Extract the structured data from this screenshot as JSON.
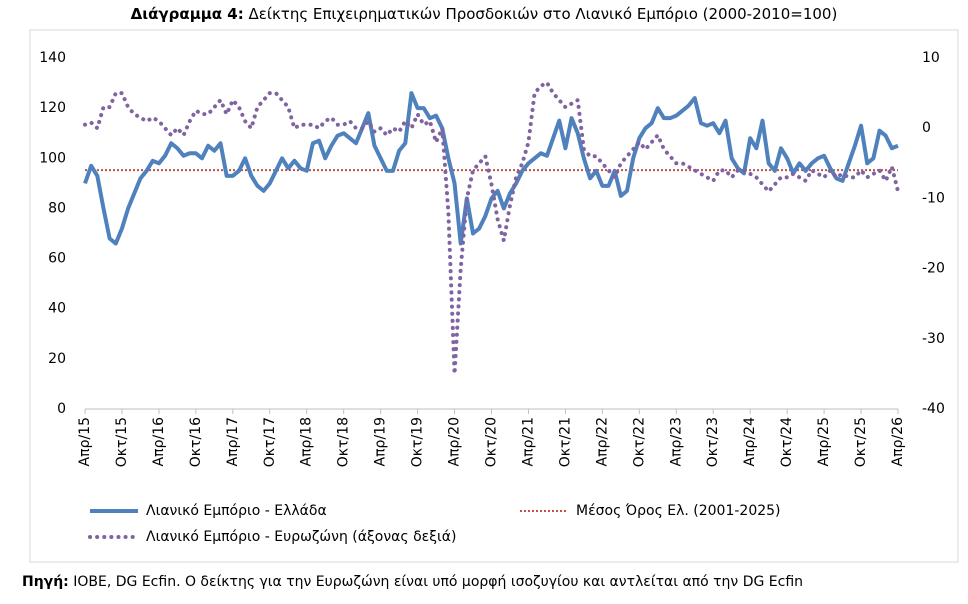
{
  "chart_data": {
    "type": "line",
    "title_prefix": "Διάγραμμα 4:",
    "title": "Δείκτης Επιχειρηματικών Προσδοκιών στο Λιανικό Εμπόριο (2000-2010=100)",
    "source_prefix": "Πηγή:",
    "source": "ΙΟΒΕ, DG Ecfin. Ο δείκτης για την Ευρωζώνη είναι υπό μορφή ισοζυγίου και αντλείται από την DG Ecfin",
    "categories": [
      "Απρ/15",
      null,
      null,
      null,
      null,
      null,
      "Οκτ/15",
      null,
      null,
      null,
      null,
      null,
      "Απρ/16",
      null,
      null,
      null,
      null,
      null,
      "Οκτ/16",
      null,
      null,
      null,
      null,
      null,
      "Απρ/17",
      null,
      null,
      null,
      null,
      null,
      "Οκτ/17",
      null,
      null,
      null,
      null,
      null,
      "Απρ/18",
      null,
      null,
      null,
      null,
      null,
      "Οκτ/18",
      null,
      null,
      null,
      null,
      null,
      "Απρ/19",
      null,
      null,
      null,
      null,
      null,
      "Οκτ/19",
      null,
      null,
      null,
      null,
      null,
      "Απρ/20",
      null,
      null,
      null,
      null,
      null,
      "Οκτ/20",
      null,
      null,
      null,
      null,
      null,
      "Απρ/21",
      null,
      null,
      null,
      null,
      null,
      "Οκτ/21",
      null,
      null,
      null,
      null,
      null,
      "Απρ/22",
      null,
      null,
      null,
      null,
      null,
      "Οκτ/22",
      null,
      null,
      null,
      null,
      null,
      "Απρ/23",
      null,
      null,
      null,
      null,
      null,
      "Οκτ/23",
      null,
      null,
      null,
      null,
      null,
      "Απρ/24",
      null,
      null,
      null,
      null,
      null,
      "Οκτ/24",
      null,
      null,
      null,
      null,
      null,
      "Απρ/25",
      null,
      null,
      null,
      null,
      null,
      "Οκτ/25",
      null,
      null,
      null,
      null,
      null,
      "Απρ/26"
    ],
    "series": [
      {
        "name": "Λιανικό Εμπόριο  - Ελλάδα",
        "color": "#4f81bd",
        "style": "solid",
        "values": [
          90,
          97,
          93,
          80,
          68,
          66,
          72,
          80,
          86,
          92,
          95,
          99,
          98,
          101,
          106,
          104,
          101,
          102,
          102,
          100,
          105,
          103,
          106,
          93,
          93,
          95,
          100,
          93,
          89,
          87,
          90,
          95,
          100,
          96,
          99,
          96,
          95,
          106,
          107,
          100,
          105,
          109,
          110,
          108,
          106,
          112,
          118,
          105,
          100,
          95,
          95,
          103,
          106,
          126,
          120,
          120,
          116,
          117,
          112,
          100,
          90,
          66,
          84,
          70,
          72,
          77,
          84,
          87,
          80,
          86,
          90,
          95,
          98,
          100,
          102,
          101,
          108,
          115,
          104,
          116,
          110,
          100,
          92,
          95,
          89,
          89,
          95,
          85,
          87,
          100,
          108,
          112,
          114,
          120,
          116,
          116,
          117,
          119,
          121,
          124,
          114,
          113,
          114,
          110,
          115,
          100,
          96,
          94,
          108,
          104,
          115,
          98,
          95,
          104,
          100,
          94,
          98,
          95,
          98,
          100,
          101,
          96,
          92,
          91,
          98,
          105,
          113,
          98,
          100,
          111,
          109,
          104,
          105
        ]
      },
      {
        "name": "Λιανικό Εμπόριο - Ευρωζώνη (άξονας δεξιά)",
        "color": "#8064a2",
        "style": "dotted",
        "axis": "y2",
        "values": [
          0.5,
          0.8,
          0,
          3,
          3,
          5,
          5,
          3,
          2,
          1.5,
          1,
          1.5,
          1,
          0,
          -1,
          0,
          -1,
          1,
          2.5,
          2,
          2,
          3,
          4,
          2,
          4,
          3,
          1,
          0,
          3,
          4,
          5,
          5,
          4,
          3,
          0,
          0.5,
          0.5,
          0.5,
          0,
          1,
          1.5,
          0.5,
          0.5,
          1,
          0,
          0,
          1,
          -0.5,
          0,
          -1,
          0,
          -0.5,
          1,
          0,
          2,
          0.5,
          1,
          -2,
          0,
          -12,
          -35,
          -20,
          -10,
          -6,
          -5,
          -4,
          -8,
          -13,
          -16,
          -11,
          -7,
          -5,
          -2,
          5,
          6,
          6.5,
          5,
          4,
          3,
          3.5,
          4,
          -3,
          -4,
          -4,
          -5,
          -6,
          -7,
          -5,
          -4,
          -3,
          -2,
          -3,
          -2,
          -1,
          -3,
          -4,
          -5,
          -5,
          -5.5,
          -6,
          -6.5,
          -7,
          -7.5,
          -6,
          -6,
          -7,
          -6,
          -6,
          -6.5,
          -7,
          -8,
          -9,
          -8,
          -7,
          -7,
          -6.5,
          -7,
          -7.5,
          -6,
          -6.5,
          -7,
          -6,
          -7,
          -6.5,
          -7,
          -7,
          -6,
          -7,
          -6.5,
          -6,
          -7.5,
          -5.5,
          -9
        ]
      }
    ],
    "reference_lines": [
      {
        "name": "Μέσος Όρος Ελ.  (2001-2025)",
        "value": 95.3,
        "color": "#c0504d"
      }
    ],
    "ylim": [
      0,
      140
    ],
    "yticks": [
      0,
      20,
      40,
      60,
      80,
      100,
      120,
      140
    ],
    "y2lim": [
      -40,
      10
    ],
    "y2ticks": [
      10,
      0,
      -10,
      -20,
      -30,
      -40
    ],
    "grid": false,
    "legend": "bottom"
  }
}
